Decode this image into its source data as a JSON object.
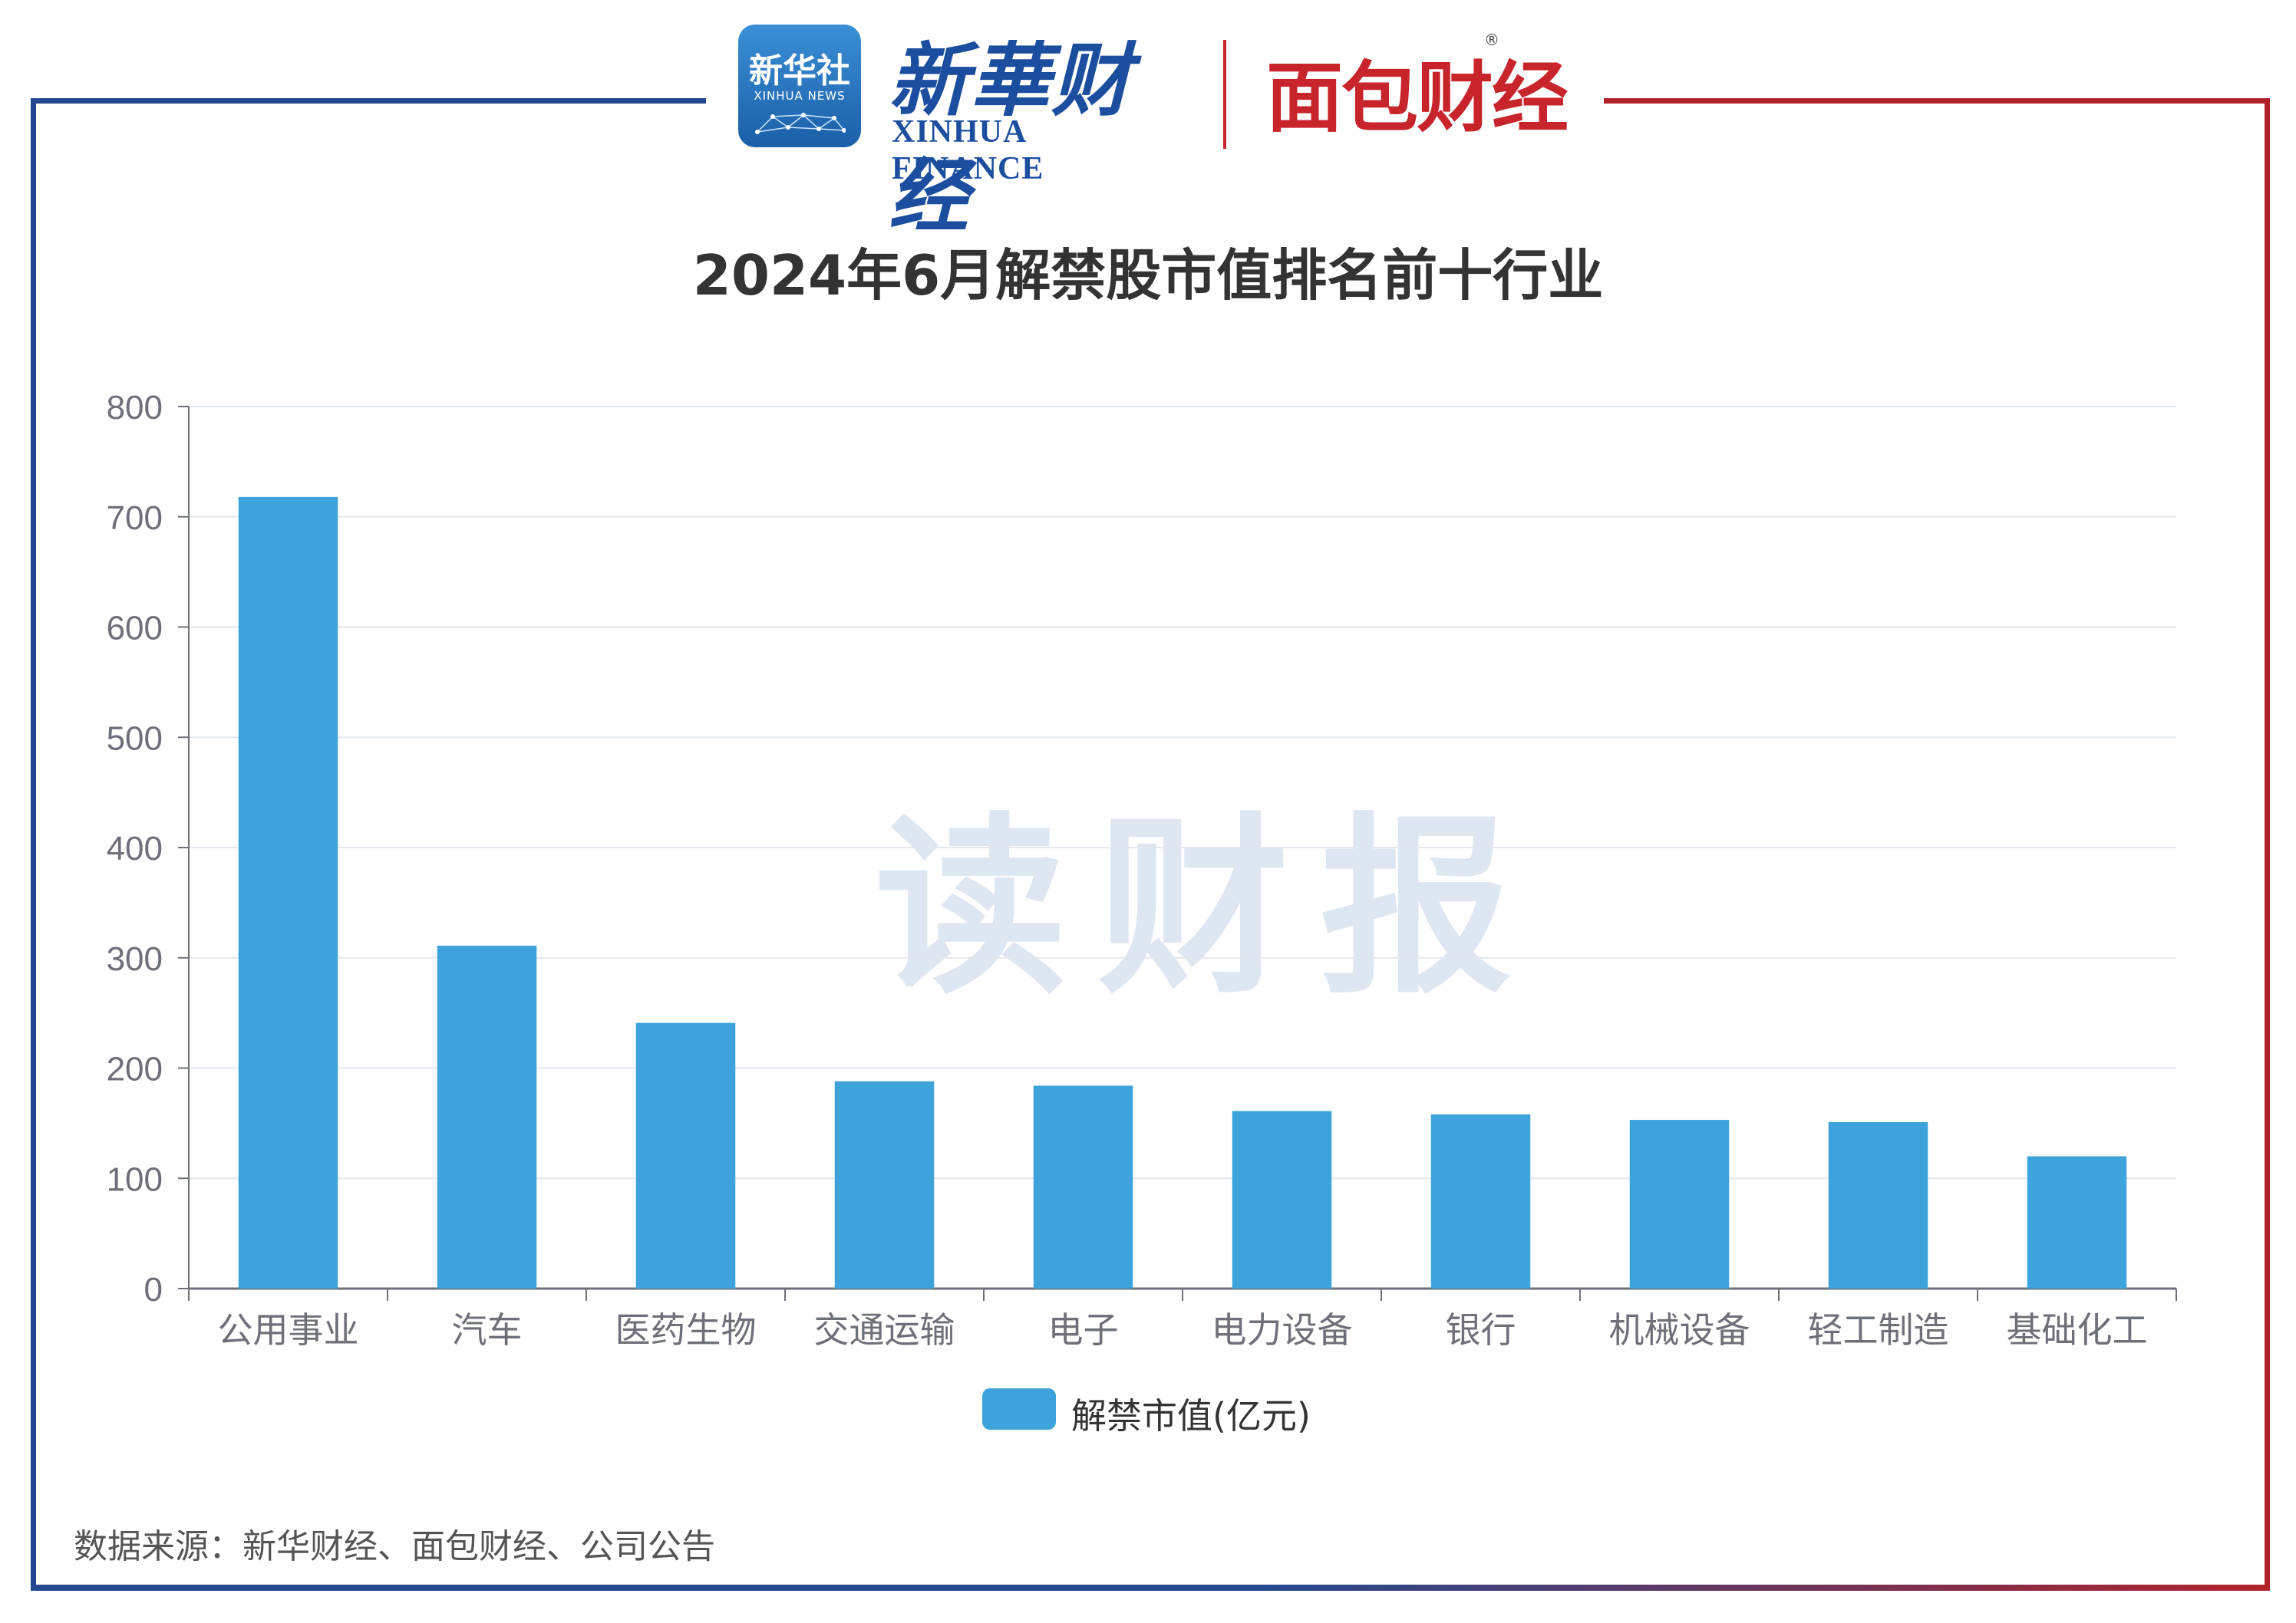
{
  "header": {
    "xinhua_logo_cn": "新华社",
    "xinhua_logo_en": "XINHUA NEWS",
    "brand_a_cn": "新華财经",
    "brand_a_en": "XINHUA FINANCE",
    "brand_b": "面包财经",
    "registered_mark": "®"
  },
  "watermark": "读财报",
  "footer": {
    "source": "数据来源：新华财经、面包财经、公司公告"
  },
  "colors": {
    "bar": "#3ea3db",
    "frame_left": "#24488f",
    "frame_right": "#b0222a",
    "grid": "#e3e7ee"
  },
  "chart_data": {
    "type": "bar",
    "title": "2024年6月解禁股市值排名前十行业",
    "xlabel": "",
    "ylabel": "",
    "categories": [
      "公用事业",
      "汽车",
      "医药生物",
      "交通运输",
      "电子",
      "电力设备",
      "银行",
      "机械设备",
      "轻工制造",
      "基础化工"
    ],
    "series": [
      {
        "name": "解禁市值(亿元)",
        "values": [
          718,
          311,
          241,
          188,
          184,
          161,
          158,
          153,
          151,
          120
        ]
      }
    ],
    "ylim": [
      0,
      800
    ],
    "yticks": [
      0,
      100,
      200,
      300,
      400,
      500,
      600,
      700,
      800
    ],
    "grid": true,
    "legend_position": "bottom-center"
  }
}
